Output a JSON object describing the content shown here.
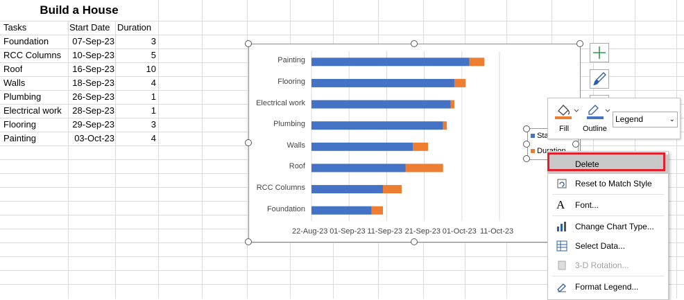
{
  "sheet": {
    "title": "Build a House",
    "headers": [
      "Tasks",
      "Start Date",
      "Duration"
    ],
    "rows": [
      {
        "task": "Foundation",
        "start": "07-Sep-23",
        "duration": "3"
      },
      {
        "task": "RCC Columns",
        "start": "10-Sep-23",
        "duration": "5"
      },
      {
        "task": "Roof",
        "start": "16-Sep-23",
        "duration": "10"
      },
      {
        "task": "Walls",
        "start": "18-Sep-23",
        "duration": "4"
      },
      {
        "task": "Plumbing",
        "start": "26-Sep-23",
        "duration": "1"
      },
      {
        "task": "Electrical work",
        "start": "28-Sep-23",
        "duration": "1"
      },
      {
        "task": "Flooring",
        "start": "29-Sep-23",
        "duration": "3"
      },
      {
        "task": "Painting",
        "start": "03-Oct-23",
        "duration": "4"
      }
    ]
  },
  "chart_data": {
    "type": "bar",
    "orientation": "horizontal",
    "stacked": true,
    "categories": [
      "Painting",
      "Flooring",
      "Electrical work",
      "Plumbing",
      "Walls",
      "Roof",
      "RCC Columns",
      "Foundation"
    ],
    "series": [
      {
        "name": "Start Date",
        "color": "#4472c4",
        "values": [
          "2023-10-03",
          "2023-09-29",
          "2023-09-28",
          "2023-09-26",
          "2023-09-18",
          "2023-09-16",
          "2023-09-10",
          "2023-09-07"
        ]
      },
      {
        "name": "Duration",
        "color": "#ed7d31",
        "values": [
          4,
          3,
          1,
          1,
          4,
          10,
          5,
          3
        ]
      }
    ],
    "x_ticks": [
      "22-Aug-23",
      "01-Sep-23",
      "11-Sep-23",
      "21-Sep-23",
      "01-Oct-23",
      "11-Oct-23"
    ],
    "xlim": [
      "2023-08-22",
      "2023-10-11"
    ],
    "grid": true
  },
  "legend_box": {
    "items": [
      "Sta",
      "Duration"
    ]
  },
  "mini_toolbar": {
    "fill_label": "Fill",
    "outline_label": "Outline",
    "element_select": "Legend",
    "fill_color": "#ed7d31",
    "outline_color": "#4472c4"
  },
  "context_menu": {
    "items": [
      {
        "label": "Delete",
        "icon": "delete-icon",
        "enabled": true
      },
      {
        "label": "Reset to Match Style",
        "icon": "reset-style-icon",
        "enabled": true
      },
      {
        "label": "Font...",
        "icon": "font-icon",
        "enabled": true
      },
      {
        "label": "Change Chart Type...",
        "icon": "chart-type-icon",
        "enabled": true
      },
      {
        "label": "Select Data...",
        "icon": "select-data-icon",
        "enabled": true
      },
      {
        "label": "3-D Rotation...",
        "icon": "rotation-icon",
        "enabled": false
      },
      {
        "label": "Format Legend...",
        "icon": "format-legend-icon",
        "enabled": true
      }
    ]
  }
}
